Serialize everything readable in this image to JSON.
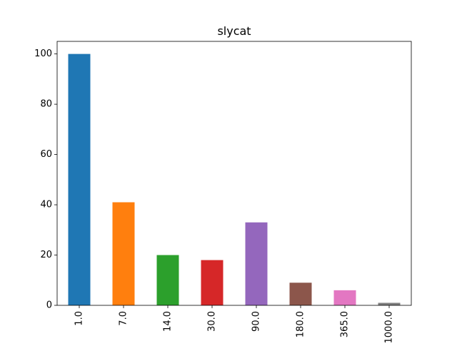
{
  "chart_data": {
    "type": "bar",
    "title": "slycat",
    "xlabel": "",
    "ylabel": "",
    "categories": [
      "1.0",
      "7.0",
      "14.0",
      "30.0",
      "90.0",
      "180.0",
      "365.0",
      "1000.0"
    ],
    "values": [
      100,
      41,
      20,
      18,
      33,
      9,
      6,
      1
    ],
    "colors": [
      "#1f77b4",
      "#ff7f0e",
      "#2ca02c",
      "#d62728",
      "#9467bd",
      "#8c564b",
      "#e377c2",
      "#7f7f7f"
    ],
    "ylim": [
      0,
      105
    ],
    "yticks": [
      0,
      20,
      40,
      60,
      80,
      100
    ],
    "grid": false,
    "legend": "none"
  }
}
